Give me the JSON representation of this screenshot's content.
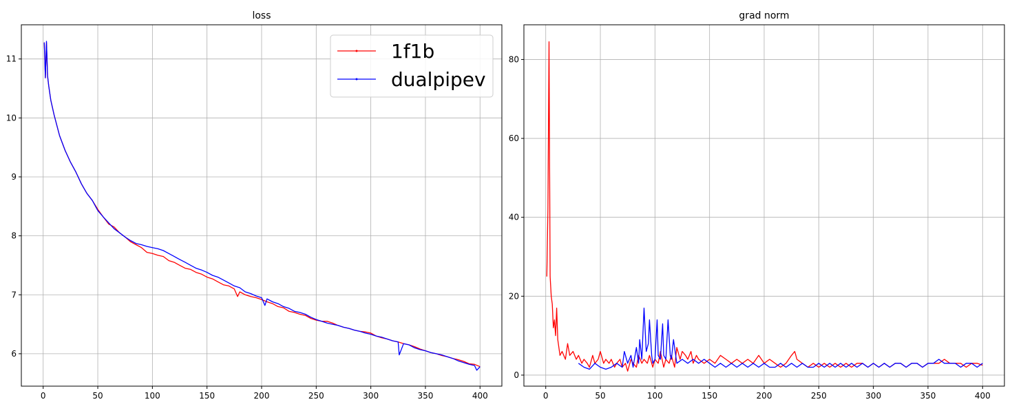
{
  "chart_data": [
    {
      "type": "line",
      "title": "loss",
      "xlabel": "",
      "ylabel": "",
      "xlim": [
        -20,
        420
      ],
      "ylim": [
        5.45,
        11.58
      ],
      "x_ticks": [
        0,
        50,
        100,
        150,
        200,
        250,
        300,
        350,
        400
      ],
      "y_ticks": [
        6,
        7,
        8,
        9,
        10,
        11
      ],
      "grid": true,
      "legend": "top-right",
      "series": [
        {
          "name": "1f1b",
          "color": "#ff0000",
          "x": [
            1,
            2,
            3,
            4,
            5,
            7,
            10,
            15,
            20,
            25,
            30,
            35,
            40,
            45,
            50,
            55,
            60,
            65,
            70,
            75,
            80,
            85,
            90,
            95,
            100,
            105,
            110,
            115,
            120,
            125,
            130,
            135,
            140,
            145,
            150,
            155,
            160,
            165,
            170,
            175,
            178,
            180,
            185,
            190,
            195,
            200,
            205,
            210,
            215,
            220,
            225,
            230,
            235,
            240,
            245,
            250,
            255,
            260,
            265,
            270,
            275,
            280,
            285,
            290,
            295,
            300,
            305,
            310,
            315,
            320,
            325,
            330,
            335,
            340,
            345,
            350,
            355,
            360,
            365,
            370,
            375,
            380,
            385,
            390,
            395,
            400
          ],
          "y": [
            11.28,
            10.68,
            11.28,
            10.7,
            10.55,
            10.3,
            10.05,
            9.7,
            9.45,
            9.25,
            9.08,
            8.88,
            8.72,
            8.6,
            8.45,
            8.32,
            8.2,
            8.15,
            8.05,
            7.98,
            7.9,
            7.85,
            7.8,
            7.72,
            7.7,
            7.67,
            7.65,
            7.58,
            7.55,
            7.5,
            7.45,
            7.43,
            7.38,
            7.35,
            7.3,
            7.27,
            7.22,
            7.17,
            7.15,
            7.1,
            6.97,
            7.05,
            7.0,
            6.97,
            6.95,
            6.92,
            6.88,
            6.85,
            6.8,
            6.78,
            6.72,
            6.7,
            6.67,
            6.65,
            6.6,
            6.57,
            6.55,
            6.55,
            6.52,
            6.48,
            6.45,
            6.43,
            6.4,
            6.38,
            6.37,
            6.35,
            6.3,
            6.27,
            6.25,
            6.22,
            6.2,
            6.17,
            6.15,
            6.12,
            6.08,
            6.05,
            6.02,
            6.0,
            5.97,
            5.95,
            5.92,
            5.9,
            5.87,
            5.83,
            5.82,
            5.78
          ]
        },
        {
          "name": "dualpipev",
          "color": "#0000ff",
          "x": [
            1,
            2,
            3,
            4,
            5,
            7,
            10,
            15,
            20,
            25,
            30,
            35,
            40,
            45,
            50,
            55,
            60,
            65,
            70,
            75,
            80,
            85,
            90,
            95,
            100,
            105,
            110,
            115,
            120,
            125,
            130,
            135,
            140,
            145,
            150,
            155,
            160,
            165,
            170,
            175,
            180,
            185,
            190,
            195,
            200,
            203,
            205,
            210,
            215,
            220,
            225,
            230,
            235,
            240,
            245,
            250,
            255,
            260,
            265,
            270,
            275,
            280,
            285,
            290,
            295,
            300,
            305,
            310,
            315,
            320,
            325,
            326,
            330,
            335,
            340,
            345,
            350,
            355,
            360,
            365,
            370,
            375,
            380,
            385,
            390,
            395,
            397,
            400
          ],
          "y": [
            11.28,
            10.68,
            11.3,
            10.72,
            10.55,
            10.3,
            10.05,
            9.7,
            9.45,
            9.25,
            9.08,
            8.88,
            8.72,
            8.6,
            8.43,
            8.32,
            8.22,
            8.12,
            8.05,
            7.98,
            7.92,
            7.87,
            7.85,
            7.82,
            7.8,
            7.78,
            7.75,
            7.7,
            7.65,
            7.6,
            7.55,
            7.5,
            7.45,
            7.42,
            7.38,
            7.33,
            7.3,
            7.25,
            7.2,
            7.15,
            7.12,
            7.05,
            7.02,
            6.98,
            6.95,
            6.82,
            6.93,
            6.88,
            6.85,
            6.8,
            6.77,
            6.72,
            6.7,
            6.67,
            6.62,
            6.58,
            6.55,
            6.52,
            6.5,
            6.48,
            6.45,
            6.43,
            6.4,
            6.38,
            6.35,
            6.33,
            6.3,
            6.28,
            6.25,
            6.22,
            6.2,
            5.98,
            6.17,
            6.15,
            6.1,
            6.07,
            6.05,
            6.02,
            6.0,
            5.98,
            5.95,
            5.92,
            5.88,
            5.85,
            5.82,
            5.8,
            5.72,
            5.78
          ]
        }
      ]
    },
    {
      "type": "line",
      "title": "grad norm",
      "xlabel": "",
      "ylabel": "",
      "xlim": [
        -20,
        420
      ],
      "ylim": [
        -2.8,
        88.8
      ],
      "x_ticks": [
        0,
        50,
        100,
        150,
        200,
        250,
        300,
        350,
        400
      ],
      "y_ticks": [
        0,
        20,
        40,
        60,
        80
      ],
      "grid": true,
      "series": [
        {
          "name": "1f1b",
          "color": "#ff0000",
          "x": [
            1,
            2,
            3,
            4,
            5,
            6,
            7,
            8,
            9,
            10,
            11,
            12,
            13,
            15,
            18,
            20,
            22,
            25,
            28,
            30,
            33,
            35,
            38,
            40,
            43,
            45,
            48,
            50,
            53,
            55,
            58,
            60,
            63,
            65,
            68,
            70,
            73,
            75,
            78,
            80,
            83,
            85,
            88,
            90,
            93,
            95,
            98,
            100,
            103,
            105,
            108,
            110,
            113,
            115,
            118,
            120,
            123,
            125,
            128,
            130,
            133,
            135,
            138,
            140,
            145,
            150,
            155,
            160,
            165,
            170,
            175,
            180,
            185,
            190,
            195,
            200,
            205,
            210,
            215,
            220,
            225,
            228,
            230,
            235,
            240,
            245,
            250,
            255,
            260,
            265,
            270,
            275,
            280,
            285,
            290,
            295,
            300,
            305,
            310,
            315,
            320,
            325,
            330,
            335,
            340,
            345,
            350,
            355,
            360,
            365,
            370,
            375,
            380,
            385,
            390,
            395,
            400
          ],
          "y": [
            25,
            42,
            84.5,
            25,
            20,
            18,
            12,
            14,
            10,
            17,
            9,
            7,
            5,
            6,
            4,
            8,
            5,
            6,
            4,
            5,
            3,
            4,
            3,
            2,
            5,
            3,
            4,
            6,
            3,
            4,
            3,
            4,
            2,
            3,
            4,
            2,
            3,
            1,
            4,
            3,
            2,
            5,
            3,
            4,
            3,
            5,
            2,
            4,
            3,
            6,
            2,
            4,
            3,
            5,
            2,
            7,
            4,
            6,
            5,
            4,
            6,
            3,
            5,
            4,
            3,
            4,
            3,
            5,
            4,
            3,
            4,
            3,
            4,
            3,
            5,
            3,
            4,
            3,
            2,
            3,
            5,
            6,
            4,
            3,
            2,
            3,
            2,
            3,
            2,
            3,
            2,
            3,
            2,
            3,
            3,
            2,
            3,
            2,
            3,
            2,
            3,
            3,
            2,
            3,
            3,
            2,
            3,
            3,
            3,
            4,
            3,
            3,
            3,
            2,
            3,
            3,
            2.5
          ]
        },
        {
          "name": "dualpipev",
          "color": "#0000ff",
          "x": [
            30,
            35,
            40,
            45,
            50,
            55,
            60,
            65,
            70,
            72,
            75,
            78,
            80,
            83,
            85,
            86,
            88,
            90,
            92,
            94,
            95,
            97,
            98,
            100,
            102,
            103,
            105,
            107,
            108,
            110,
            112,
            114,
            115,
            117,
            120,
            125,
            130,
            135,
            140,
            145,
            150,
            155,
            160,
            165,
            170,
            175,
            180,
            185,
            190,
            195,
            200,
            205,
            210,
            215,
            220,
            225,
            230,
            235,
            240,
            245,
            250,
            255,
            260,
            265,
            270,
            275,
            280,
            285,
            290,
            295,
            300,
            305,
            310,
            315,
            320,
            325,
            330,
            335,
            340,
            345,
            350,
            355,
            360,
            365,
            370,
            375,
            380,
            385,
            390,
            395,
            400
          ],
          "y": [
            3,
            2,
            1.5,
            3,
            2,
            1.5,
            2,
            3,
            2,
            6,
            3,
            5,
            2,
            7,
            3,
            9,
            4,
            17,
            6,
            8,
            14,
            5,
            3,
            4,
            14,
            5,
            4,
            13,
            5,
            4,
            14,
            5,
            4,
            9,
            3,
            4,
            3,
            4,
            3,
            4,
            3,
            2,
            3,
            2,
            3,
            2,
            3,
            2,
            3,
            2,
            3,
            2,
            2,
            3,
            2,
            3,
            2,
            3,
            2,
            2,
            3,
            2,
            3,
            2,
            3,
            2,
            3,
            2,
            3,
            2,
            3,
            2,
            3,
            2,
            3,
            3,
            2,
            3,
            3,
            2,
            3,
            3,
            4,
            3,
            3,
            3,
            2,
            3,
            3,
            2,
            3
          ]
        }
      ]
    }
  ]
}
